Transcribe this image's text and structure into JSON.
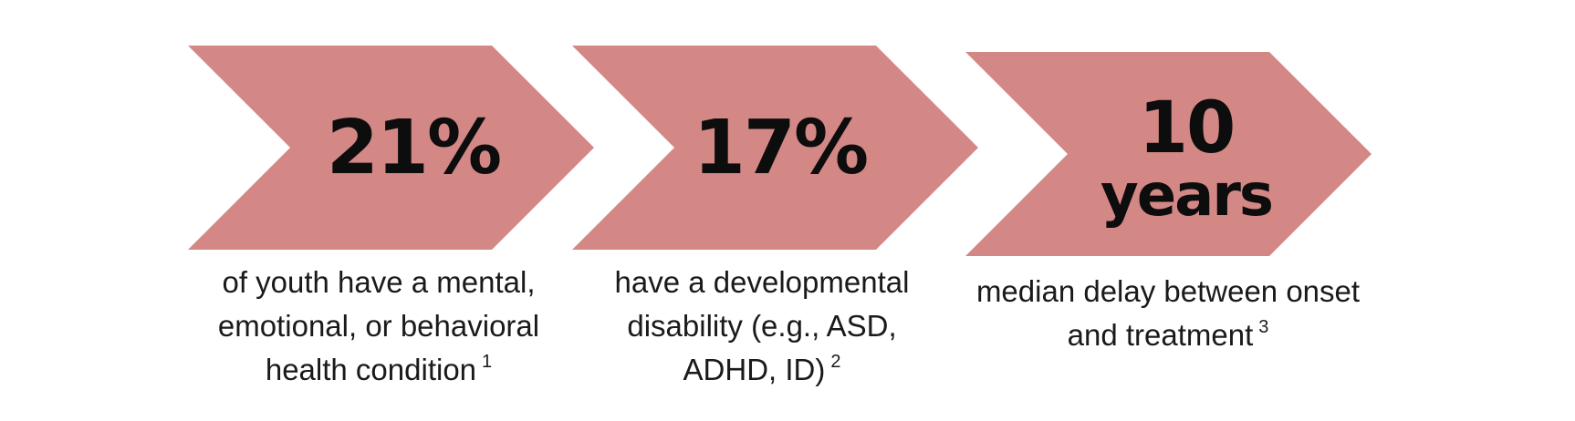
{
  "colors": {
    "chevron_fill": "#d38886",
    "stat_text": "#0d0d0d",
    "caption_text": "#1a1a1a",
    "background": "#ffffff"
  },
  "stats": [
    {
      "value_line1": "21%",
      "value_line2": "",
      "caption_lines": [
        "of youth have a mental,",
        "emotional, or behavioral",
        "health condition"
      ],
      "footnote": "1"
    },
    {
      "value_line1": "17%",
      "value_line2": "",
      "caption_lines": [
        "have a developmental",
        "disability (e.g., ASD,",
        "ADHD, ID)"
      ],
      "footnote": "2"
    },
    {
      "value_line1": "10",
      "value_line2": "years",
      "caption_lines": [
        "median delay between onset",
        "and treatment"
      ],
      "footnote": "3"
    }
  ]
}
